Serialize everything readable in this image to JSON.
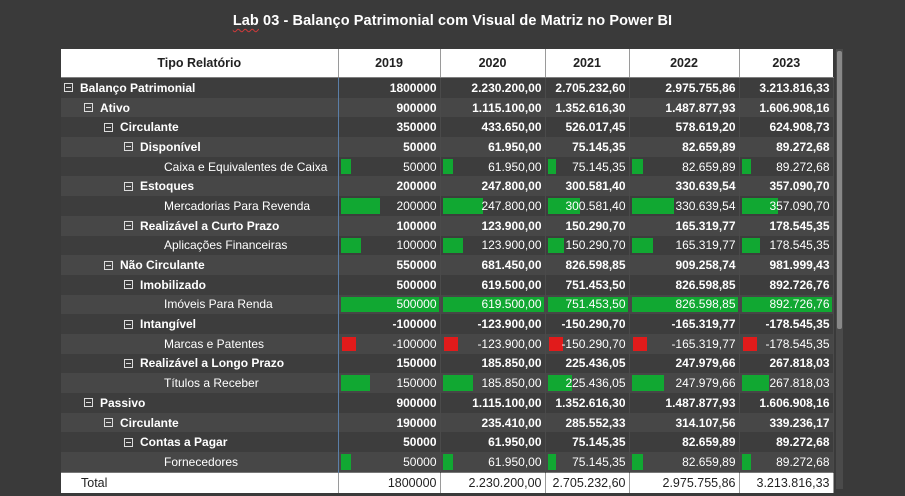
{
  "title_prefix": "Lab",
  "title_rest": " 03 - Balanço Patrimonial com Visual de Matriz no Power BI",
  "colors": {
    "positive_bar": "#11a832",
    "negative_bar": "#e11b1b",
    "background": "#3a3a3a"
  },
  "headers": [
    "Tipo Relatório",
    "2019",
    "2020",
    "2021",
    "2022",
    "2023"
  ],
  "rows": [
    {
      "label": "Balanço Patrimonial",
      "level": 0,
      "group": true,
      "values": [
        "1800000",
        "2.230.200,00",
        "2.705.232,60",
        "2.975.755,86",
        "3.213.816,33"
      ]
    },
    {
      "label": "Ativo",
      "level": 1,
      "group": true,
      "values": [
        "900000",
        "1.115.100,00",
        "1.352.616,30",
        "1.487.877,93",
        "1.606.908,16"
      ]
    },
    {
      "label": "Circulante",
      "level": 2,
      "group": true,
      "values": [
        "350000",
        "433.650,00",
        "526.017,45",
        "578.619,20",
        "624.908,73"
      ]
    },
    {
      "label": "Disponível",
      "level": 3,
      "group": true,
      "values": [
        "50000",
        "61.950,00",
        "75.145,35",
        "82.659,89",
        "89.272,68"
      ]
    },
    {
      "label": "Caixa e Equivalentes de Caixa",
      "level": 4,
      "group": false,
      "values": [
        "50000",
        "61.950,00",
        "75.145,35",
        "82.659,89",
        "89.272,68"
      ],
      "bars": [
        0.1,
        0.1,
        0.1,
        0.1,
        0.1
      ]
    },
    {
      "label": "Estoques",
      "level": 3,
      "group": true,
      "values": [
        "200000",
        "247.800,00",
        "300.581,40",
        "330.639,54",
        "357.090,70"
      ]
    },
    {
      "label": "Mercadorias Para Revenda",
      "level": 4,
      "group": false,
      "values": [
        "200000",
        "247.800,00",
        "300.581,40",
        "330.639,54",
        "357.090,70"
      ],
      "bars": [
        0.4,
        0.4,
        0.4,
        0.4,
        0.4
      ]
    },
    {
      "label": "Realizável a Curto Prazo",
      "level": 3,
      "group": true,
      "values": [
        "100000",
        "123.900,00",
        "150.290,70",
        "165.319,77",
        "178.545,35"
      ]
    },
    {
      "label": "Aplicações Financeiras",
      "level": 4,
      "group": false,
      "values": [
        "100000",
        "123.900,00",
        "150.290,70",
        "165.319,77",
        "178.545,35"
      ],
      "bars": [
        0.2,
        0.2,
        0.2,
        0.2,
        0.2
      ]
    },
    {
      "label": "Não Circulante",
      "level": 2,
      "group": true,
      "values": [
        "550000",
        "681.450,00",
        "826.598,85",
        "909.258,74",
        "981.999,43"
      ]
    },
    {
      "label": "Imobilizado",
      "level": 3,
      "group": true,
      "values": [
        "500000",
        "619.500,00",
        "751.453,50",
        "826.598,85",
        "892.726,76"
      ]
    },
    {
      "label": "Imóveis Para Renda",
      "level": 4,
      "group": false,
      "values": [
        "500000",
        "619.500,00",
        "751.453,50",
        "826.598,85",
        "892.726,76"
      ],
      "bars": [
        1.0,
        1.0,
        1.0,
        1.0,
        1.0
      ]
    },
    {
      "label": "Intangível",
      "level": 3,
      "group": true,
      "values": [
        "-100000",
        "-123.900,00",
        "-150.290,70",
        "-165.319,77",
        "-178.545,35"
      ]
    },
    {
      "label": "Marcas e Patentes",
      "level": 4,
      "group": false,
      "values": [
        "-100000",
        "-123.900,00",
        "-150.290,70",
        "-165.319,77",
        "-178.545,35"
      ],
      "bars": [
        -1,
        -1,
        -1,
        -1,
        -1
      ]
    },
    {
      "label": "Realizável a Longo Prazo",
      "level": 3,
      "group": true,
      "values": [
        "150000",
        "185.850,00",
        "225.436,05",
        "247.979,66",
        "267.818,03"
      ]
    },
    {
      "label": "Títulos a Receber",
      "level": 4,
      "group": false,
      "values": [
        "150000",
        "185.850,00",
        "225.436,05",
        "247.979,66",
        "267.818,03"
      ],
      "bars": [
        0.3,
        0.3,
        0.3,
        0.3,
        0.3
      ]
    },
    {
      "label": "Passivo",
      "level": 1,
      "group": true,
      "values": [
        "900000",
        "1.115.100,00",
        "1.352.616,30",
        "1.487.877,93",
        "1.606.908,16"
      ]
    },
    {
      "label": "Circulante",
      "level": 2,
      "group": true,
      "values": [
        "190000",
        "235.410,00",
        "285.552,33",
        "314.107,56",
        "339.236,17"
      ]
    },
    {
      "label": "Contas a Pagar",
      "level": 3,
      "group": true,
      "values": [
        "50000",
        "61.950,00",
        "75.145,35",
        "82.659,89",
        "89.272,68"
      ]
    },
    {
      "label": "Fornecedores",
      "level": 4,
      "group": false,
      "values": [
        "50000",
        "61.950,00",
        "75.145,35",
        "82.659,89",
        "89.272,68"
      ],
      "bars": [
        0.1,
        0.1,
        0.1,
        0.1,
        0.1
      ]
    }
  ],
  "total": {
    "label": "Total",
    "values": [
      "1800000",
      "2.230.200,00",
      "2.705.232,60",
      "2.975.755,86",
      "3.213.816,33"
    ]
  }
}
